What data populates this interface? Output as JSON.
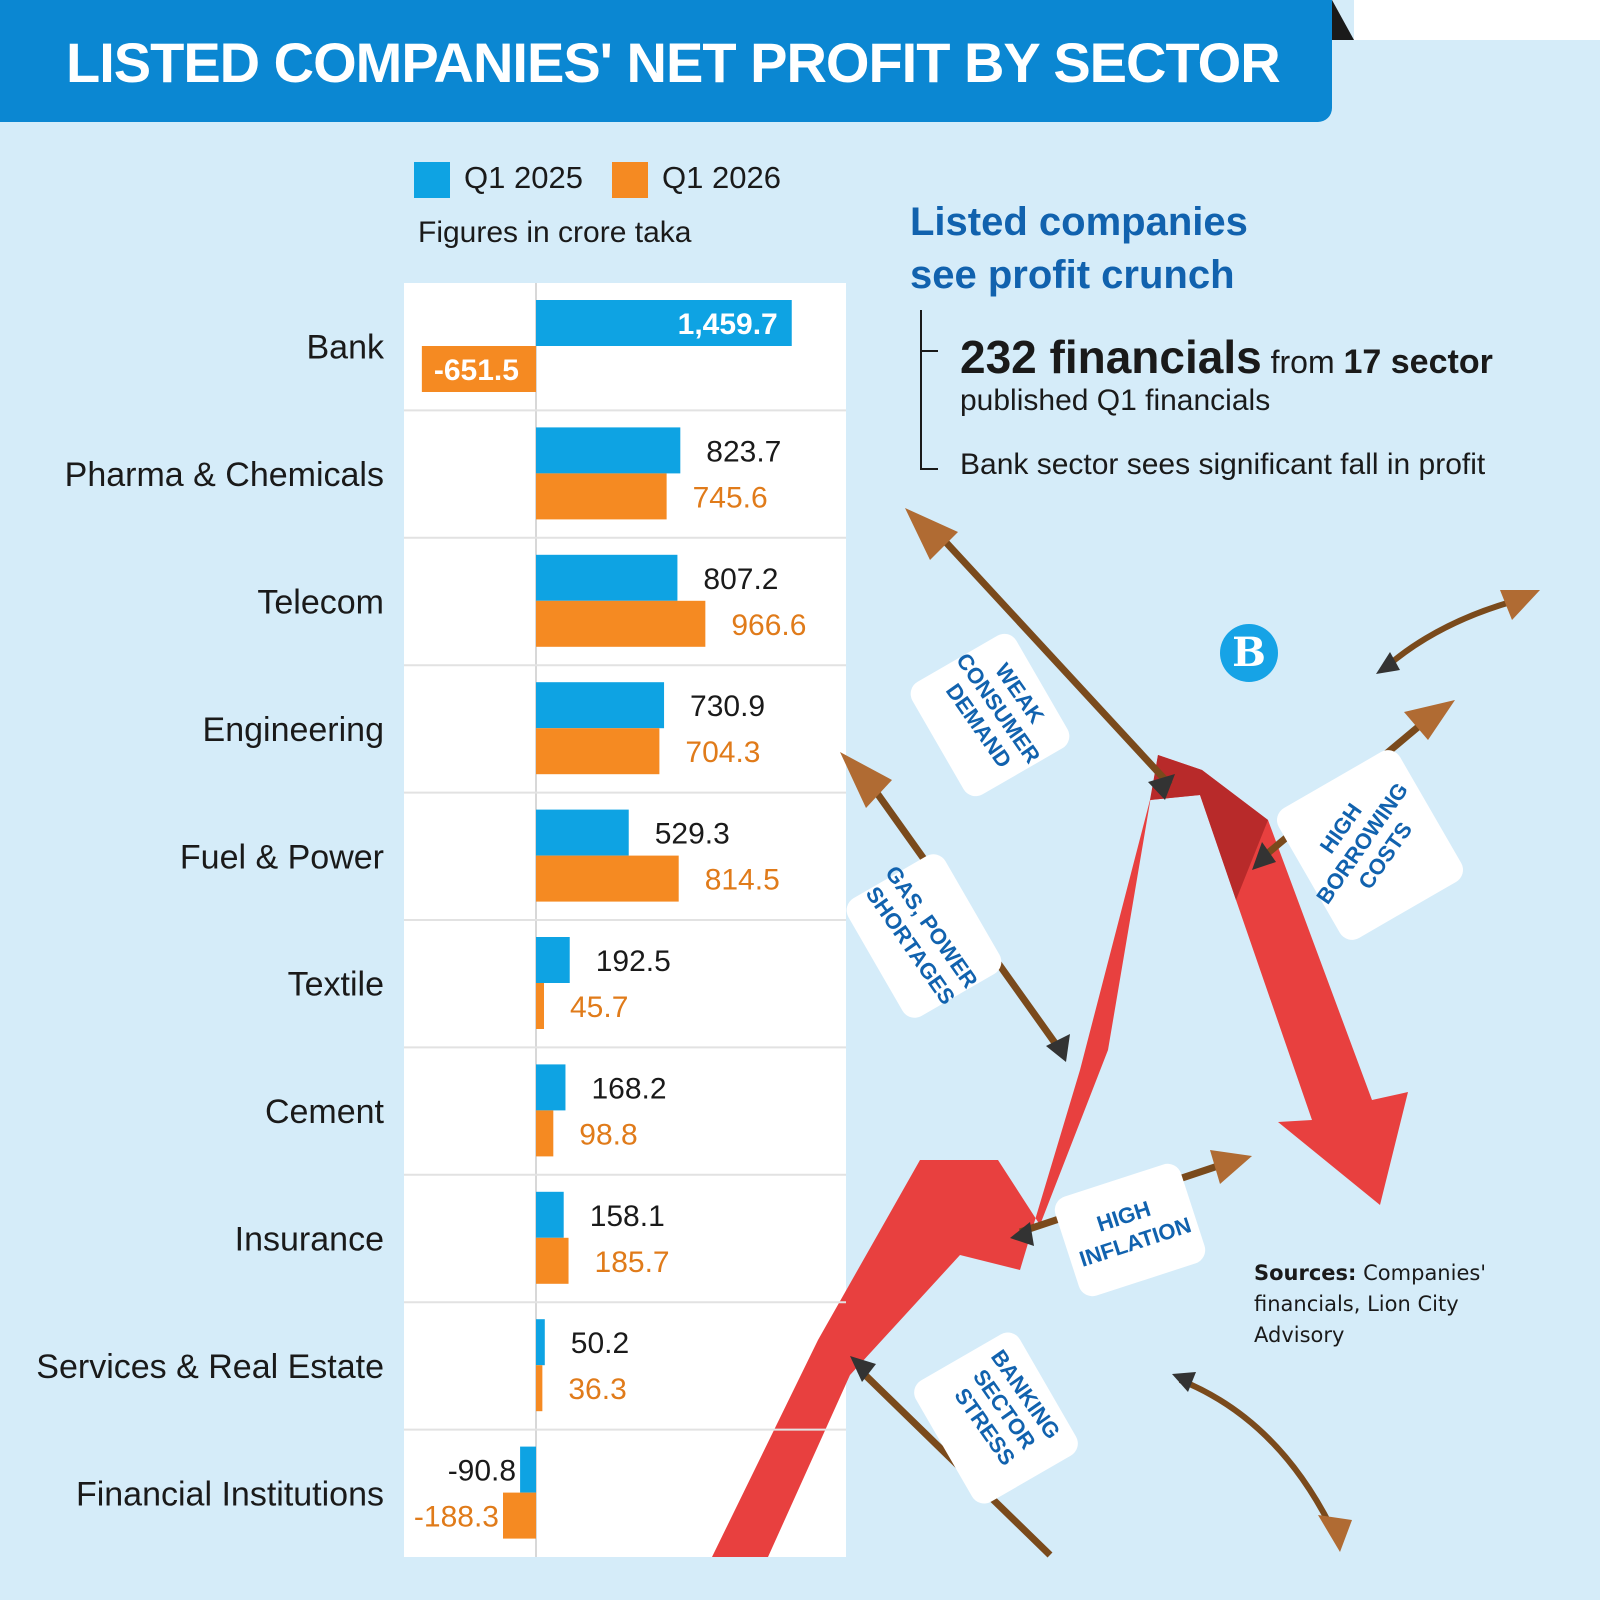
{
  "title": "LISTED COMPANIES' NET PROFIT BY SECTOR",
  "units_note": "Figures in crore taka",
  "side_panel": {
    "heading": "Listed companies see profit crunch",
    "stat_count": "232 financials",
    "stat_mid": "from",
    "stat_sectors": "17 sector",
    "stat_sub": "published Q1 financials",
    "bank_note": "Bank sector sees significant fall in profit"
  },
  "illustration_tags": {
    "weak_demand": [
      "WEAK",
      "CONSUMER",
      "DEMAND"
    ],
    "borrowing": [
      "HIGH",
      "BORROWING",
      "COSTS"
    ],
    "gas_power": [
      "GAS, POWER",
      "SHORTAGES"
    ],
    "inflation": [
      "HIGH",
      "INFLATION"
    ],
    "banking": [
      "BANKING",
      "SECTOR",
      "STRESS"
    ]
  },
  "logo_letter": "B",
  "sources": {
    "label": "Sources:",
    "text": "Companies' financials, Lion City Advisory"
  },
  "colors": {
    "q1_2025": "#0ea3e3",
    "q1_2026": "#f58a22",
    "banner": "#0b87d2",
    "heading": "#1162ae",
    "arrow": "#e8403f"
  },
  "chart_data": {
    "type": "bar",
    "orientation": "horizontal",
    "categories": [
      "Bank",
      "Pharma & Chemicals",
      "Telecom",
      "Engineering",
      "Fuel & Power",
      "Textile",
      "Cement",
      "Insurance",
      "Services & Real Estate",
      "Financial Institutions"
    ],
    "series": [
      {
        "name": "Q1 2025",
        "values": [
          1459.7,
          823.7,
          807.2,
          730.9,
          529.3,
          192.5,
          168.2,
          158.1,
          50.2,
          -90.8
        ],
        "labels": [
          "1,459.7",
          "823.7",
          "807.2",
          "730.9",
          "529.3",
          "192.5",
          "168.2",
          "158.1",
          "50.2",
          "-90.8"
        ]
      },
      {
        "name": "Q1 2026",
        "values": [
          -651.5,
          745.6,
          966.6,
          704.3,
          814.5,
          45.7,
          98.8,
          185.7,
          36.3,
          -188.3
        ],
        "labels": [
          "-651.5",
          "745.6",
          "966.6",
          "704.3",
          "814.5",
          "45.7",
          "98.8",
          "185.7",
          "36.3",
          "-188.3"
        ]
      }
    ],
    "unit": "crore taka"
  }
}
